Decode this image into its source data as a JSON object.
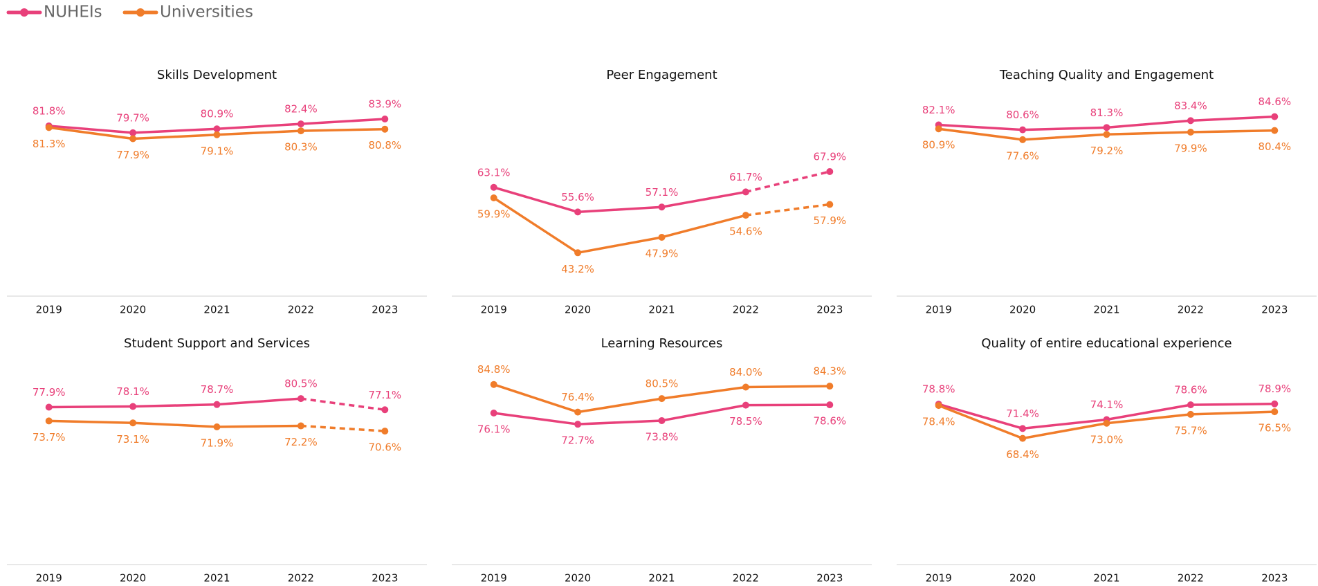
{
  "chart_data": [
    {
      "type": "line",
      "title": "Skills Development",
      "categories": [
        "2019",
        "2020",
        "2021",
        "2022",
        "2023"
      ],
      "ylim": [
        30,
        100
      ],
      "dashed_last_segment": false,
      "series": [
        {
          "name": "NUHEIs",
          "color": "#e8407a",
          "values": [
            81.8,
            79.7,
            80.9,
            82.4,
            83.9
          ],
          "value_labels": [
            "81.8%",
            "79.7%",
            "80.9%",
            "82.4%",
            "83.9%"
          ]
        },
        {
          "name": "Universities",
          "color": "#f07c2a",
          "values": [
            81.3,
            77.9,
            79.1,
            80.3,
            80.8
          ],
          "value_labels": [
            "81.3%",
            "77.9%",
            "79.1%",
            "80.3%",
            "80.8%"
          ]
        }
      ]
    },
    {
      "type": "line",
      "title": "Peer Engagement",
      "categories": [
        "2019",
        "2020",
        "2021",
        "2022",
        "2023"
      ],
      "ylim": [
        30,
        100
      ],
      "dashed_last_segment": true,
      "series": [
        {
          "name": "NUHEIs",
          "color": "#e8407a",
          "values": [
            63.1,
            55.6,
            57.1,
            61.7,
            67.9
          ],
          "value_labels": [
            "63.1%",
            "55.6%",
            "57.1%",
            "61.7%",
            "67.9%"
          ]
        },
        {
          "name": "Universities",
          "color": "#f07c2a",
          "values": [
            59.9,
            43.2,
            47.9,
            54.6,
            57.9
          ],
          "value_labels": [
            "59.9%",
            "43.2%",
            "47.9%",
            "54.6%",
            "57.9%"
          ]
        }
      ]
    },
    {
      "type": "line",
      "title": "Teaching Quality and Engagement",
      "categories": [
        "2019",
        "2020",
        "2021",
        "2022",
        "2023"
      ],
      "ylim": [
        30,
        100
      ],
      "dashed_last_segment": false,
      "series": [
        {
          "name": "NUHEIs",
          "color": "#e8407a",
          "values": [
            82.1,
            80.6,
            81.3,
            83.4,
            84.6
          ],
          "value_labels": [
            "82.1%",
            "80.6%",
            "81.3%",
            "83.4%",
            "84.6%"
          ]
        },
        {
          "name": "Universities",
          "color": "#f07c2a",
          "values": [
            80.9,
            77.6,
            79.2,
            79.9,
            80.4
          ],
          "value_labels": [
            "80.9%",
            "77.6%",
            "79.2%",
            "79.9%",
            "80.4%"
          ]
        }
      ]
    },
    {
      "type": "line",
      "title": "Student Support and Services",
      "categories": [
        "2019",
        "2020",
        "2021",
        "2022",
        "2023"
      ],
      "ylim": [
        30,
        100
      ],
      "dashed_last_segment": true,
      "series": [
        {
          "name": "NUHEIs",
          "color": "#e8407a",
          "values": [
            77.9,
            78.1,
            78.7,
            80.5,
            77.1
          ],
          "value_labels": [
            "77.9%",
            "78.1%",
            "78.7%",
            "80.5%",
            "77.1%"
          ]
        },
        {
          "name": "Universities",
          "color": "#f07c2a",
          "values": [
            73.7,
            73.1,
            71.9,
            72.2,
            70.6
          ],
          "value_labels": [
            "73.7%",
            "73.1%",
            "71.9%",
            "72.2%",
            "70.6%"
          ]
        }
      ]
    },
    {
      "type": "line",
      "title": "Learning Resources",
      "categories": [
        "2019",
        "2020",
        "2021",
        "2022",
        "2023"
      ],
      "ylim": [
        30,
        100
      ],
      "dashed_last_segment": false,
      "series": [
        {
          "name": "NUHEIs",
          "color": "#e8407a",
          "values": [
            76.1,
            72.7,
            73.8,
            78.5,
            78.6
          ],
          "value_labels": [
            "76.1%",
            "72.7%",
            "73.8%",
            "78.5%",
            "78.6%"
          ]
        },
        {
          "name": "Universities",
          "color": "#f07c2a",
          "values": [
            84.8,
            76.4,
            80.5,
            84.0,
            84.3
          ],
          "value_labels": [
            "84.8%",
            "76.4%",
            "80.5%",
            "84.0%",
            "84.3%"
          ]
        }
      ]
    },
    {
      "type": "line",
      "title": "Quality of entire educational experience",
      "categories": [
        "2019",
        "2020",
        "2021",
        "2022",
        "2023"
      ],
      "ylim": [
        30,
        100
      ],
      "dashed_last_segment": false,
      "series": [
        {
          "name": "NUHEIs",
          "color": "#e8407a",
          "values": [
            78.8,
            71.4,
            74.1,
            78.6,
            78.9
          ],
          "value_labels": [
            "78.8%",
            "71.4%",
            "74.1%",
            "78.6%",
            "78.9%"
          ]
        },
        {
          "name": "Universities",
          "color": "#f07c2a",
          "values": [
            78.4,
            68.4,
            73.0,
            75.7,
            76.5
          ],
          "value_labels": [
            "78.4%",
            "68.4%",
            "73.0%",
            "75.7%",
            "76.5%"
          ]
        }
      ]
    }
  ]
}
